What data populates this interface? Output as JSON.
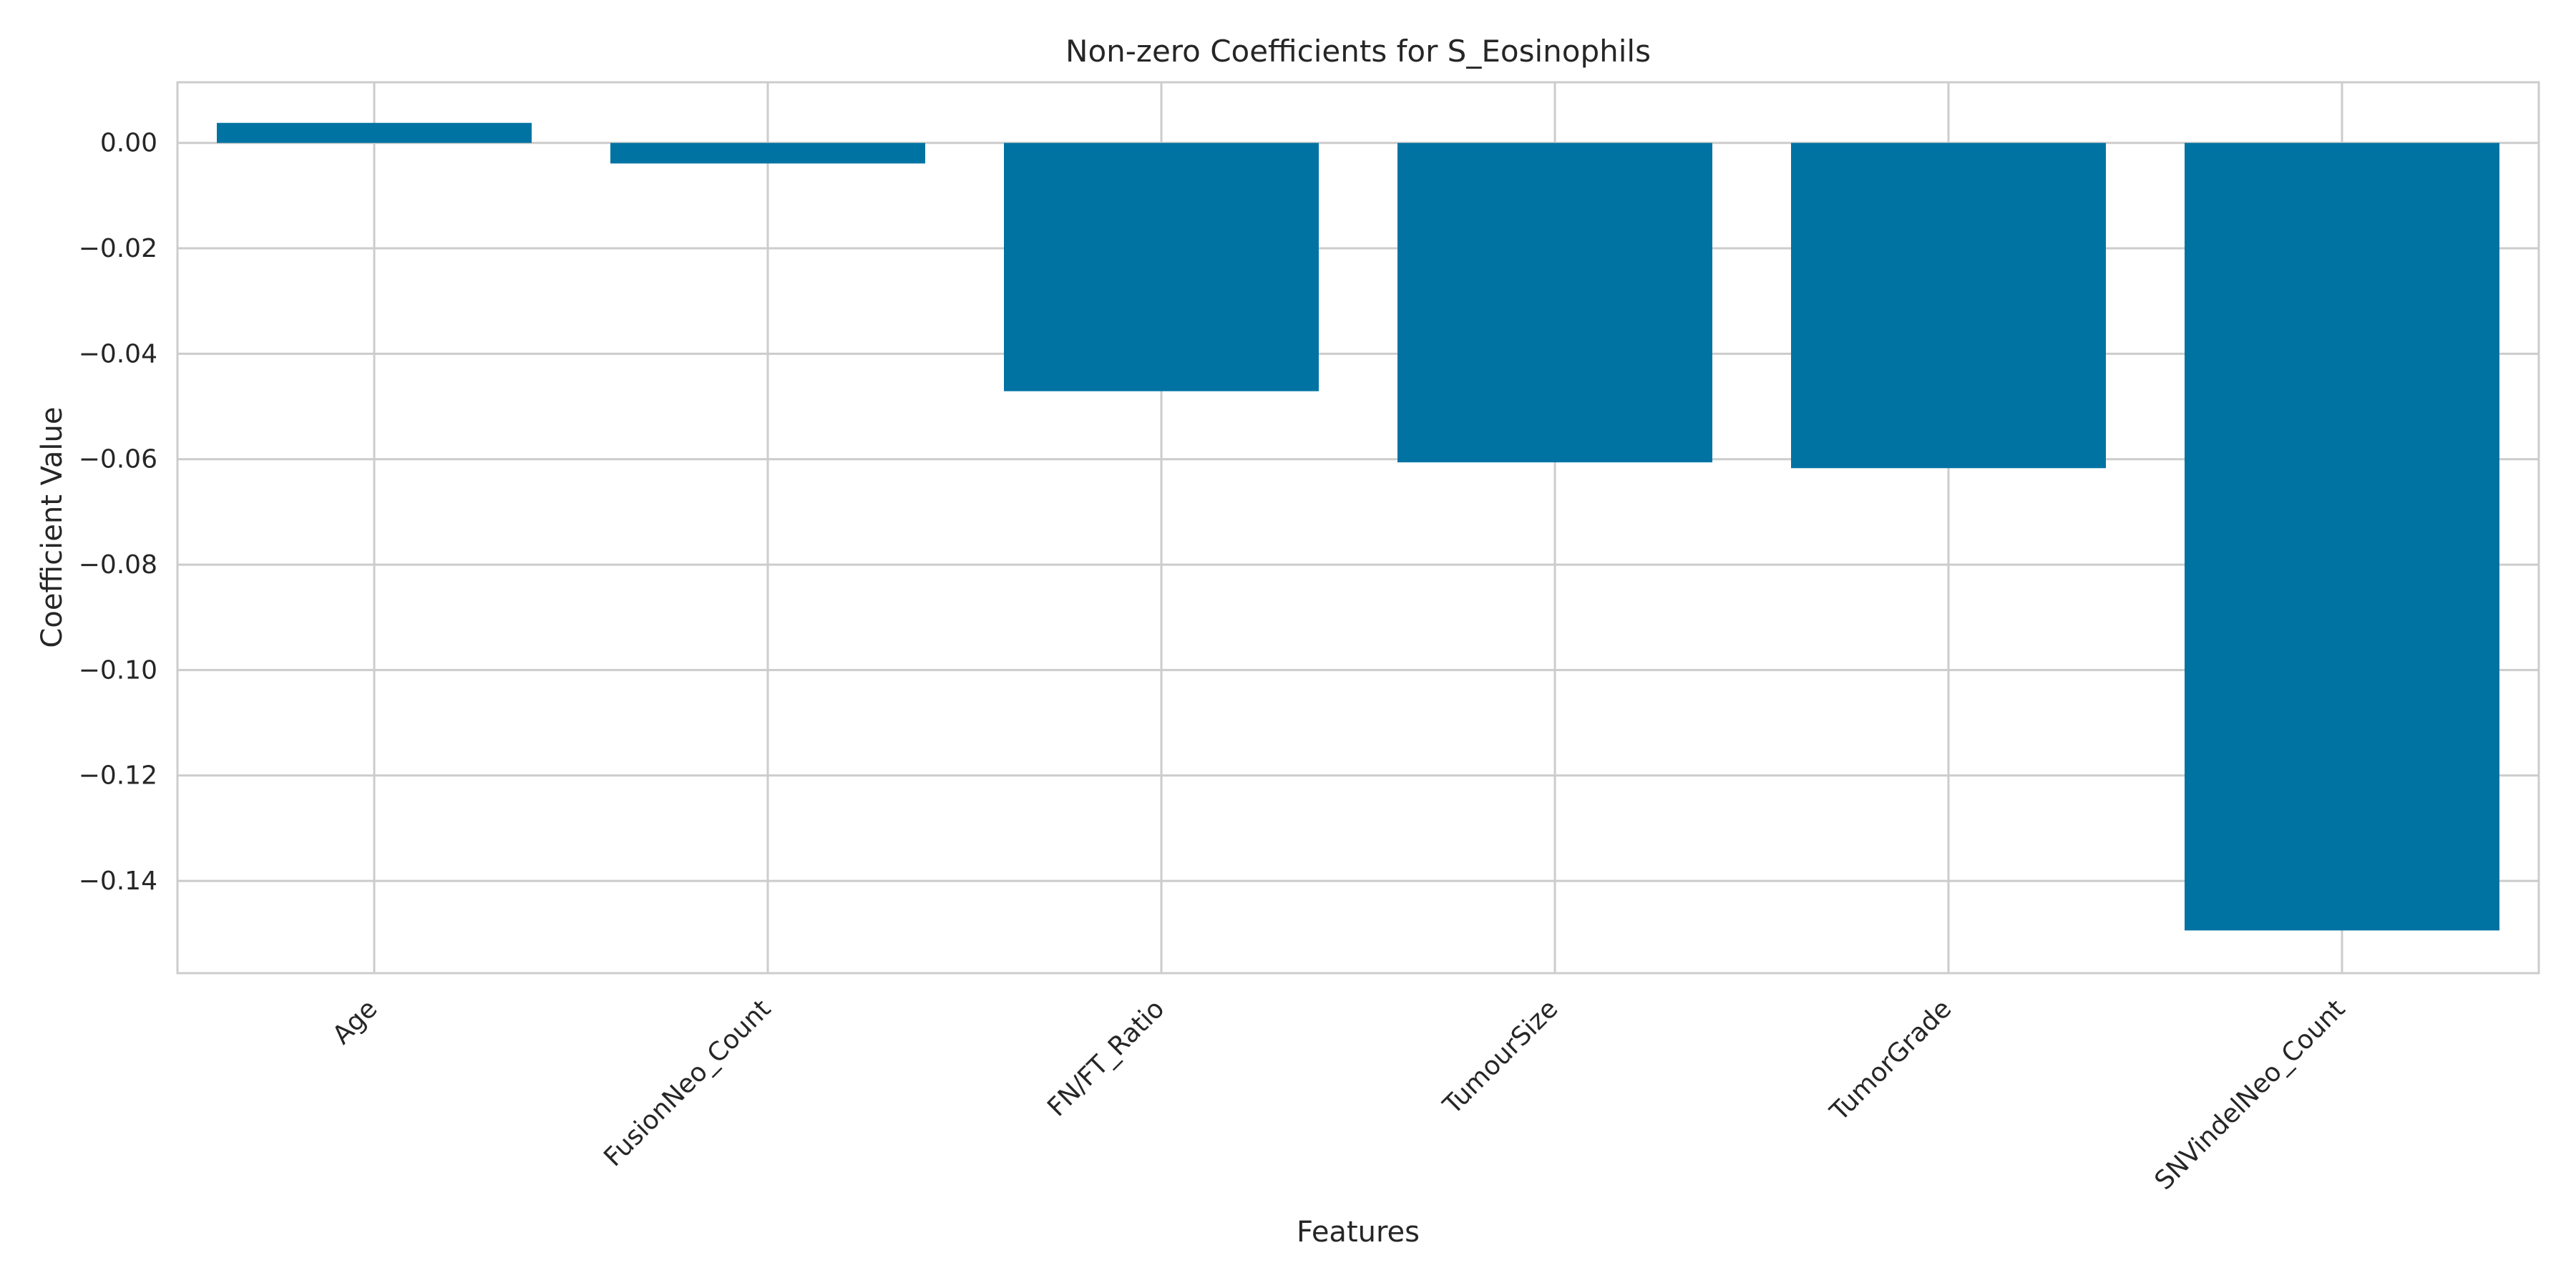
{
  "chart_data": {
    "type": "bar",
    "title": "Non-zero Coefficients for S_Eosinophils",
    "xlabel": "Features",
    "ylabel": "Coefficient Value",
    "categories": [
      "Age",
      "FusionNeo_Count",
      "FN/FT_Ratio",
      "TumourSize",
      "TumorGrade",
      "SNVindelNeo_Count"
    ],
    "values": [
      0.0038,
      -0.0039,
      -0.0471,
      -0.0606,
      -0.0617,
      -0.1494
    ],
    "ylim": [
      -0.1575,
      0.0115
    ],
    "yticks": [
      0.0,
      -0.02,
      -0.04,
      -0.06,
      -0.08,
      -0.1,
      -0.12,
      -0.14
    ],
    "ytick_labels": [
      "0.00",
      "−0.02",
      "−0.04",
      "−0.06",
      "−0.08",
      "−0.10",
      "−0.12",
      "−0.14"
    ],
    "grid": true,
    "colors": {
      "bar": "#0173a3",
      "grid": "#cccccc",
      "axis": "#cccccc",
      "text": "#262626"
    }
  }
}
